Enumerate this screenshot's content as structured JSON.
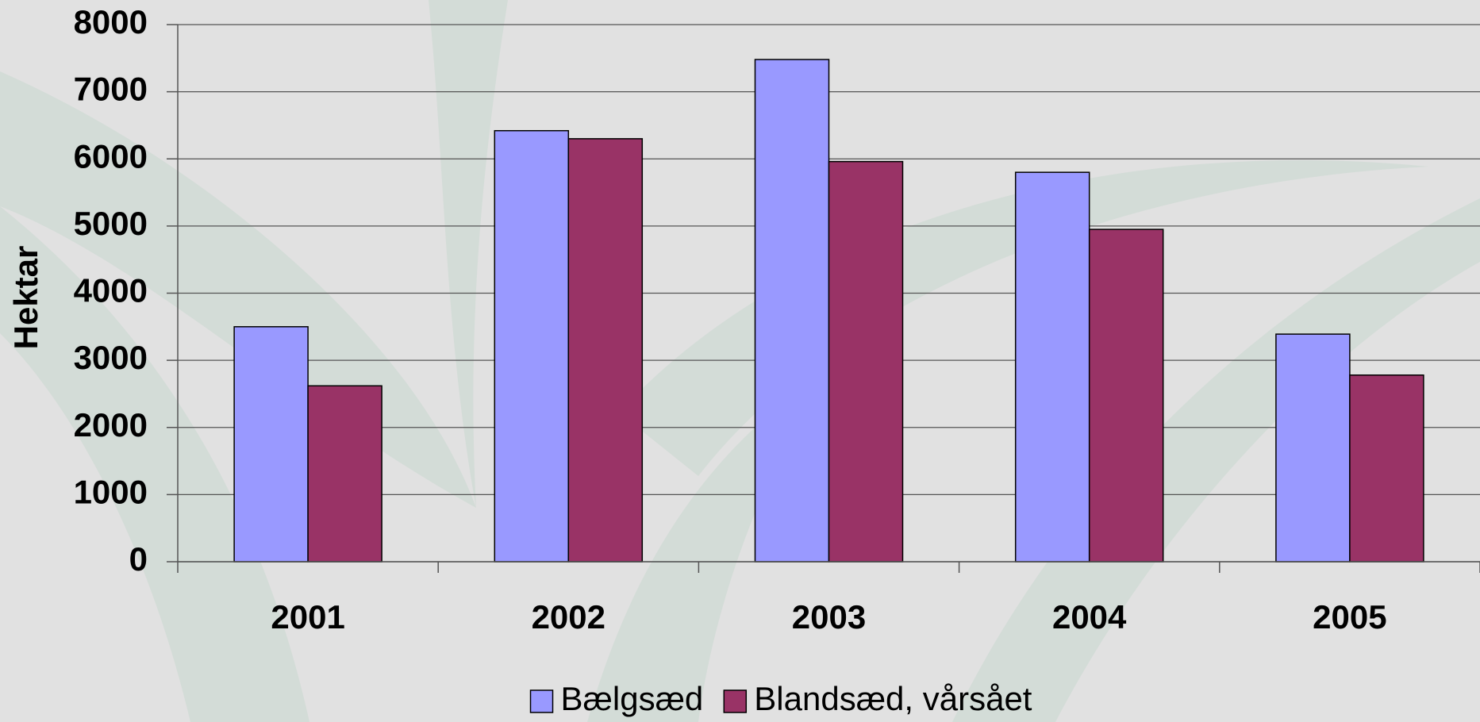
{
  "chart_data": {
    "type": "bar",
    "ylabel": "Hektar",
    "categories": [
      "2001",
      "2002",
      "2003",
      "2004",
      "2005"
    ],
    "series": [
      {
        "name": "Bælgsæd",
        "color": "#9999ff",
        "values": [
          3500,
          6420,
          7480,
          5800,
          3390
        ]
      },
      {
        "name": "Blandsæd, vårsået",
        "color": "#993366",
        "values": [
          2620,
          6300,
          5960,
          4950,
          2780
        ]
      }
    ],
    "ylim": [
      0,
      8000
    ],
    "yticks": [
      0,
      1000,
      2000,
      3000,
      4000,
      5000,
      6000,
      7000,
      8000
    ],
    "grid": true,
    "legend": "bottom"
  }
}
